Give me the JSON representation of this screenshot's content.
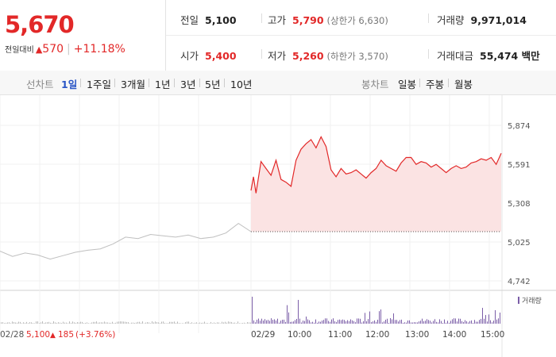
{
  "quote": {
    "price": "5,670",
    "prev_close_label": "전일대비",
    "change": "570",
    "change_rate": "+11.18%",
    "up_color": "#e22828"
  },
  "info": {
    "prev_close": {
      "label": "전일",
      "value": "5,100"
    },
    "high": {
      "label": "고가",
      "value": "5,790",
      "sub": "(상한가 6,630)"
    },
    "volume": {
      "label": "거래량",
      "value": "9,971,014"
    },
    "open": {
      "label": "시가",
      "value": "5,400"
    },
    "low": {
      "label": "저가",
      "value": "5,260",
      "sub": "(하한가 3,570)"
    },
    "amount": {
      "label": "거래대금",
      "value": "55,474 백만"
    }
  },
  "period_bar": {
    "line_title": "선차트",
    "line_periods": [
      "1일",
      "1주일",
      "3개월",
      "1년",
      "3년",
      "5년",
      "10년"
    ],
    "active_period": "1일",
    "candle_title": "봉차트",
    "candle_periods": [
      "일봉",
      "주봉",
      "월봉"
    ]
  },
  "chart_data": {
    "type": "line",
    "y_ticks": [
      "5,874",
      "5,591",
      "5,308",
      "5,025",
      "4,742"
    ],
    "ylim": [
      4742,
      5874
    ],
    "x_labels": [
      "02/29",
      "10:00",
      "11:00",
      "12:00",
      "13:00",
      "14:00",
      "15:00"
    ],
    "prev_day_label": "02/28",
    "prev_day_close": "5,100",
    "prev_day_change": "185",
    "prev_day_rate": "(+3.76%)",
    "volume_legend": "거래량",
    "prev_day_series": {
      "time_fraction": [
        0,
        0.05,
        0.1,
        0.15,
        0.2,
        0.25,
        0.3,
        0.35,
        0.4,
        0.45,
        0.5,
        0.55,
        0.6,
        0.65,
        0.7,
        0.75,
        0.8,
        0.85,
        0.9,
        0.95,
        1
      ],
      "values": [
        4958,
        4920,
        4945,
        4930,
        4900,
        4925,
        4950,
        4965,
        4975,
        5010,
        5060,
        5050,
        5080,
        5070,
        5060,
        5075,
        5050,
        5060,
        5090,
        5160,
        5100
      ]
    },
    "today_series": {
      "time_fraction": [
        0,
        0.01,
        0.02,
        0.04,
        0.06,
        0.08,
        0.1,
        0.12,
        0.14,
        0.16,
        0.18,
        0.2,
        0.22,
        0.24,
        0.26,
        0.28,
        0.3,
        0.32,
        0.34,
        0.36,
        0.38,
        0.4,
        0.42,
        0.44,
        0.46,
        0.48,
        0.5,
        0.52,
        0.54,
        0.56,
        0.58,
        0.6,
        0.62,
        0.64,
        0.66,
        0.68,
        0.7,
        0.72,
        0.74,
        0.76,
        0.78,
        0.8,
        0.82,
        0.84,
        0.86,
        0.88,
        0.9,
        0.92,
        0.94,
        0.96,
        0.98,
        1
      ],
      "values": [
        5400,
        5500,
        5380,
        5610,
        5560,
        5510,
        5620,
        5480,
        5460,
        5430,
        5620,
        5700,
        5740,
        5770,
        5710,
        5790,
        5720,
        5550,
        5500,
        5560,
        5520,
        5530,
        5550,
        5520,
        5490,
        5530,
        5560,
        5620,
        5580,
        5560,
        5540,
        5600,
        5640,
        5640,
        5590,
        5610,
        5600,
        5570,
        5590,
        5560,
        5530,
        5560,
        5580,
        5560,
        5570,
        5600,
        5610,
        5630,
        5620,
        5640,
        5590,
        5670
      ]
    }
  }
}
